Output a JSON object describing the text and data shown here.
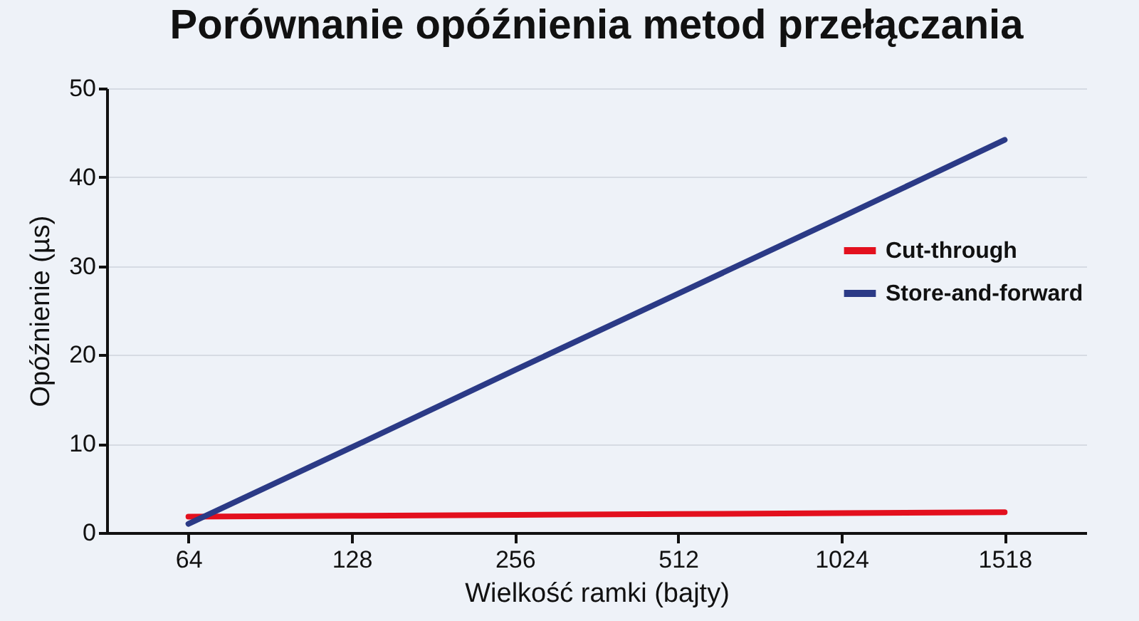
{
  "chart_data": {
    "type": "line",
    "title": "Porównanie opóźnienia metod przełączania",
    "xlabel": "Wielkość ramki (bajty)",
    "ylabel": "Opóźnienie (µs)",
    "categories": [
      "64",
      "128",
      "256",
      "512",
      "1024",
      "1518"
    ],
    "series": [
      {
        "name": "Cut-through",
        "color": "#e3101e",
        "values": [
          1.8,
          1.9,
          2.0,
          2.1,
          2.2,
          2.3
        ]
      },
      {
        "name": "Store-and-forward",
        "color": "#2b3a86",
        "values": [
          1,
          9.6,
          18.3,
          26.9,
          35.5,
          44.2
        ]
      }
    ],
    "ylim": [
      0,
      50
    ],
    "yticks": [
      0,
      10,
      20,
      30,
      40,
      50
    ],
    "grid": "y",
    "legend": "right",
    "marker": "none",
    "line_style": "solid"
  }
}
